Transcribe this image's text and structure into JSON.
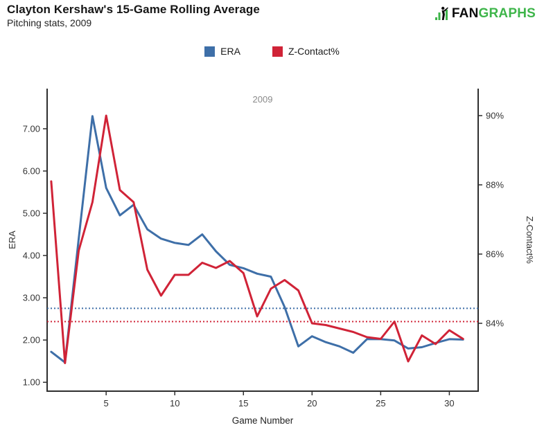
{
  "header": {
    "title": "Clayton Kershaw's 15-Game Rolling Average",
    "subtitle": "Pitching stats, 2009",
    "logo": {
      "fan": "FAN",
      "graphs": "GRAPHS",
      "green": "#3eb54a",
      "black": "#0b0b0b"
    }
  },
  "legend": [
    {
      "label": "ERA",
      "color": "#3e6fa8"
    },
    {
      "label": "Z-Contact%",
      "color": "#d02337"
    }
  ],
  "chart_data": {
    "type": "line",
    "annotation": "2009",
    "annotation_color": "#8a8a8a",
    "xlabel": "Game Number",
    "grid": false,
    "legend_position": "top-center",
    "games": [
      1,
      2,
      3,
      4,
      5,
      6,
      7,
      8,
      9,
      10,
      11,
      12,
      13,
      14,
      15,
      16,
      17,
      18,
      19,
      20,
      21,
      22,
      23,
      24,
      25,
      26,
      27,
      28,
      29,
      30,
      31
    ],
    "x_ticks": [
      5,
      10,
      15,
      20,
      25,
      30
    ],
    "xlim": [
      0.7,
      32.1
    ],
    "left_axis": {
      "label": "ERA",
      "ticks": [
        "1.00",
        "2.00",
        "3.00",
        "4.00",
        "5.00",
        "6.00",
        "7.00"
      ],
      "tick_values": [
        1,
        2,
        3,
        4,
        5,
        6,
        7
      ],
      "lim": [
        0.79,
        7.95
      ]
    },
    "right_axis": {
      "label": "Z-Contact%",
      "ticks": [
        "84%",
        "86%",
        "88%",
        "90%"
      ],
      "tick_values": [
        84,
        86,
        88,
        90
      ],
      "lim": [
        82.04,
        90.78
      ]
    },
    "series": [
      {
        "name": "ERA",
        "axis": "left",
        "color": "#3e6fa8",
        "average_line": 2.75,
        "values": [
          1.72,
          1.47,
          4.4,
          7.3,
          5.6,
          4.95,
          5.2,
          4.62,
          4.4,
          4.3,
          4.25,
          4.5,
          4.1,
          3.78,
          3.7,
          3.57,
          3.5,
          2.78,
          1.85,
          2.09,
          1.95,
          1.85,
          1.7,
          2.02,
          2.02,
          1.99,
          1.8,
          1.83,
          1.93,
          2.02,
          2.01
        ]
      },
      {
        "name": "Z-Contact%",
        "axis": "right",
        "color": "#d02337",
        "average_line": 84.05,
        "values": [
          88.1,
          82.85,
          86.1,
          87.5,
          90.0,
          87.85,
          87.5,
          85.55,
          84.8,
          85.4,
          85.4,
          85.75,
          85.6,
          85.8,
          85.45,
          84.2,
          85.0,
          85.25,
          84.95,
          84.0,
          83.95,
          83.85,
          83.75,
          83.6,
          83.55,
          84.05,
          82.9,
          83.65,
          83.4,
          83.8,
          83.55
        ]
      }
    ]
  }
}
